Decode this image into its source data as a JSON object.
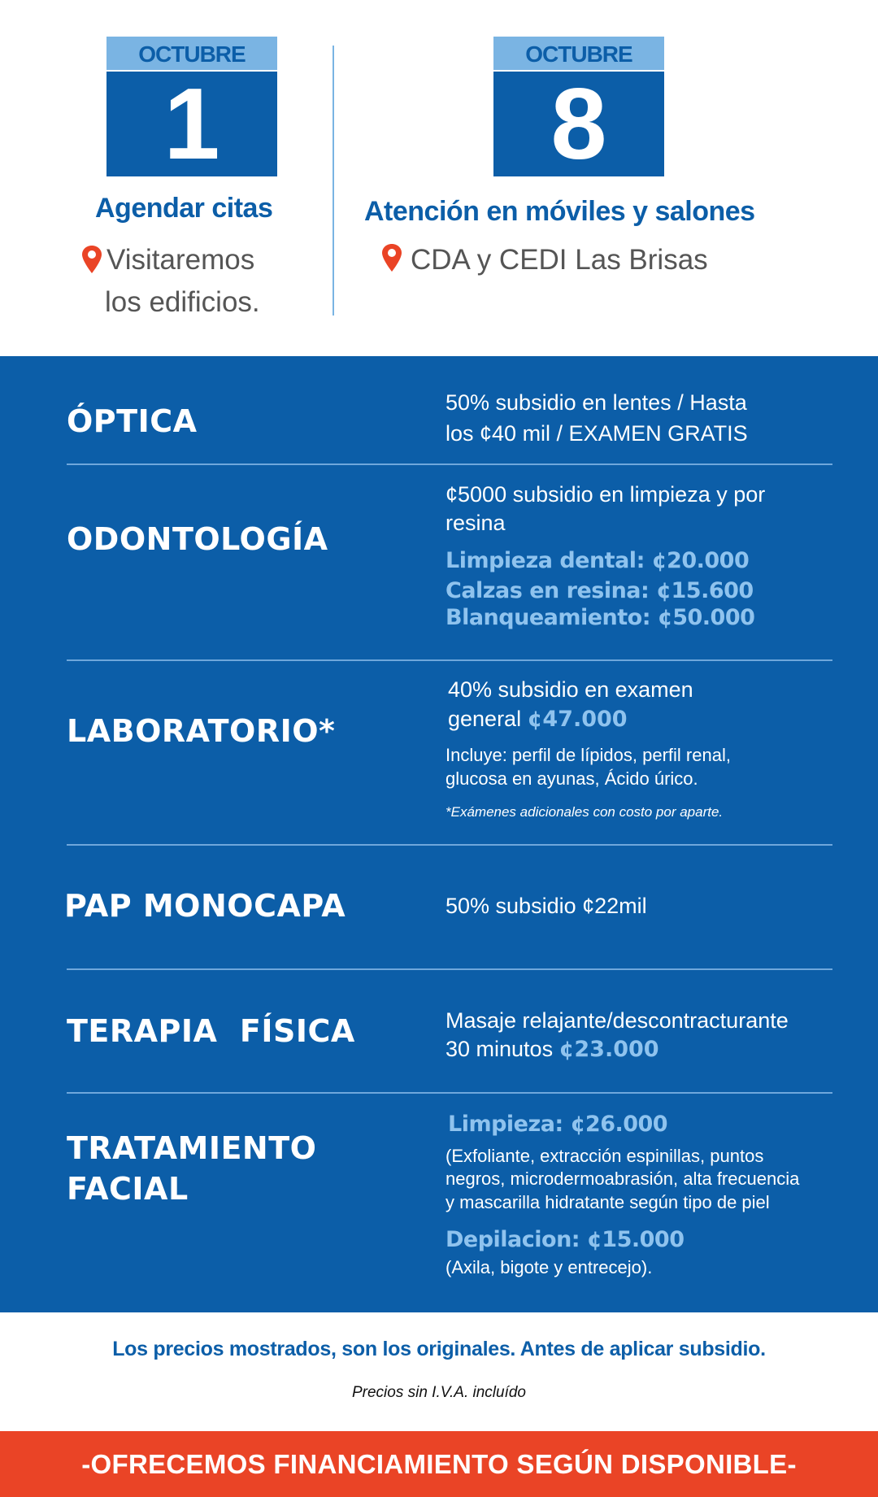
{
  "colors": {
    "brand_blue": "#0c5ea8",
    "light_blue": "#7ab4e3",
    "accent_red": "#ea4426"
  },
  "events": [
    {
      "month": "OCTUBRE",
      "day": "1",
      "title": "Agendar citas",
      "location_icon": "map-pin-icon",
      "location_lines": [
        "Visitaremos",
        "los edificios."
      ]
    },
    {
      "month": "OCTUBRE",
      "day": "8",
      "title": "Atención en móviles y salones",
      "location_icon": "map-pin-icon",
      "location_lines": [
        "CDA y CEDI Las Brisas"
      ]
    }
  ],
  "services": [
    {
      "name": "ÓPTICA",
      "lines": [
        "50% subsidio en lentes / Hasta",
        "los ¢40 mil / EXAMEN GRATIS"
      ]
    },
    {
      "name": "ODONTOLOGÍA",
      "lines": [
        "¢5000 subsidio en limpieza y por",
        "resina"
      ],
      "prices": [
        "Limpieza dental: ¢20.000",
        "Calzas en resina: ¢15.600",
        "Blanqueamiento: ¢50.000"
      ]
    },
    {
      "name": "LABORATORIO*",
      "lines": [
        "40% subsidio en examen",
        "general "
      ],
      "price": "¢47.000",
      "details": [
        "Incluye: perfil de lípidos, perfil renal,",
        "glucosa en ayunas, Ácido úrico."
      ],
      "note": "*Exámenes adicionales con costo por aparte."
    },
    {
      "name": "PAP MONOCAPA",
      "lines": [
        "50% subsidio ¢22mil"
      ]
    },
    {
      "name": "TERAPIA  FÍSICA",
      "lines": [
        "Masaje relajante/descontracturante",
        "30 minutos "
      ],
      "price": "¢23.000"
    },
    {
      "name_lines": [
        "TRATAMIENTO",
        "FACIAL"
      ],
      "price1": "Limpieza: ¢26.000",
      "details1": [
        "(Exfoliante, extracción espinillas, puntos",
        "negros, microdermoabrasión, alta frecuencia",
        "y mascarilla hidratante según tipo de piel"
      ],
      "price2": "Depilacion: ¢15.000",
      "details2": [
        "(Axila, bigote y entrecejo)."
      ]
    }
  ],
  "footer": {
    "disclaimer": "Los precios mostrados, son los originales. Antes de aplicar subsidio.",
    "tax_note": "Precios sin I.V.A. incluído",
    "banner": "-OFRECEMOS FINANCIAMIENTO SEGÚN DISPONIBLE-"
  }
}
